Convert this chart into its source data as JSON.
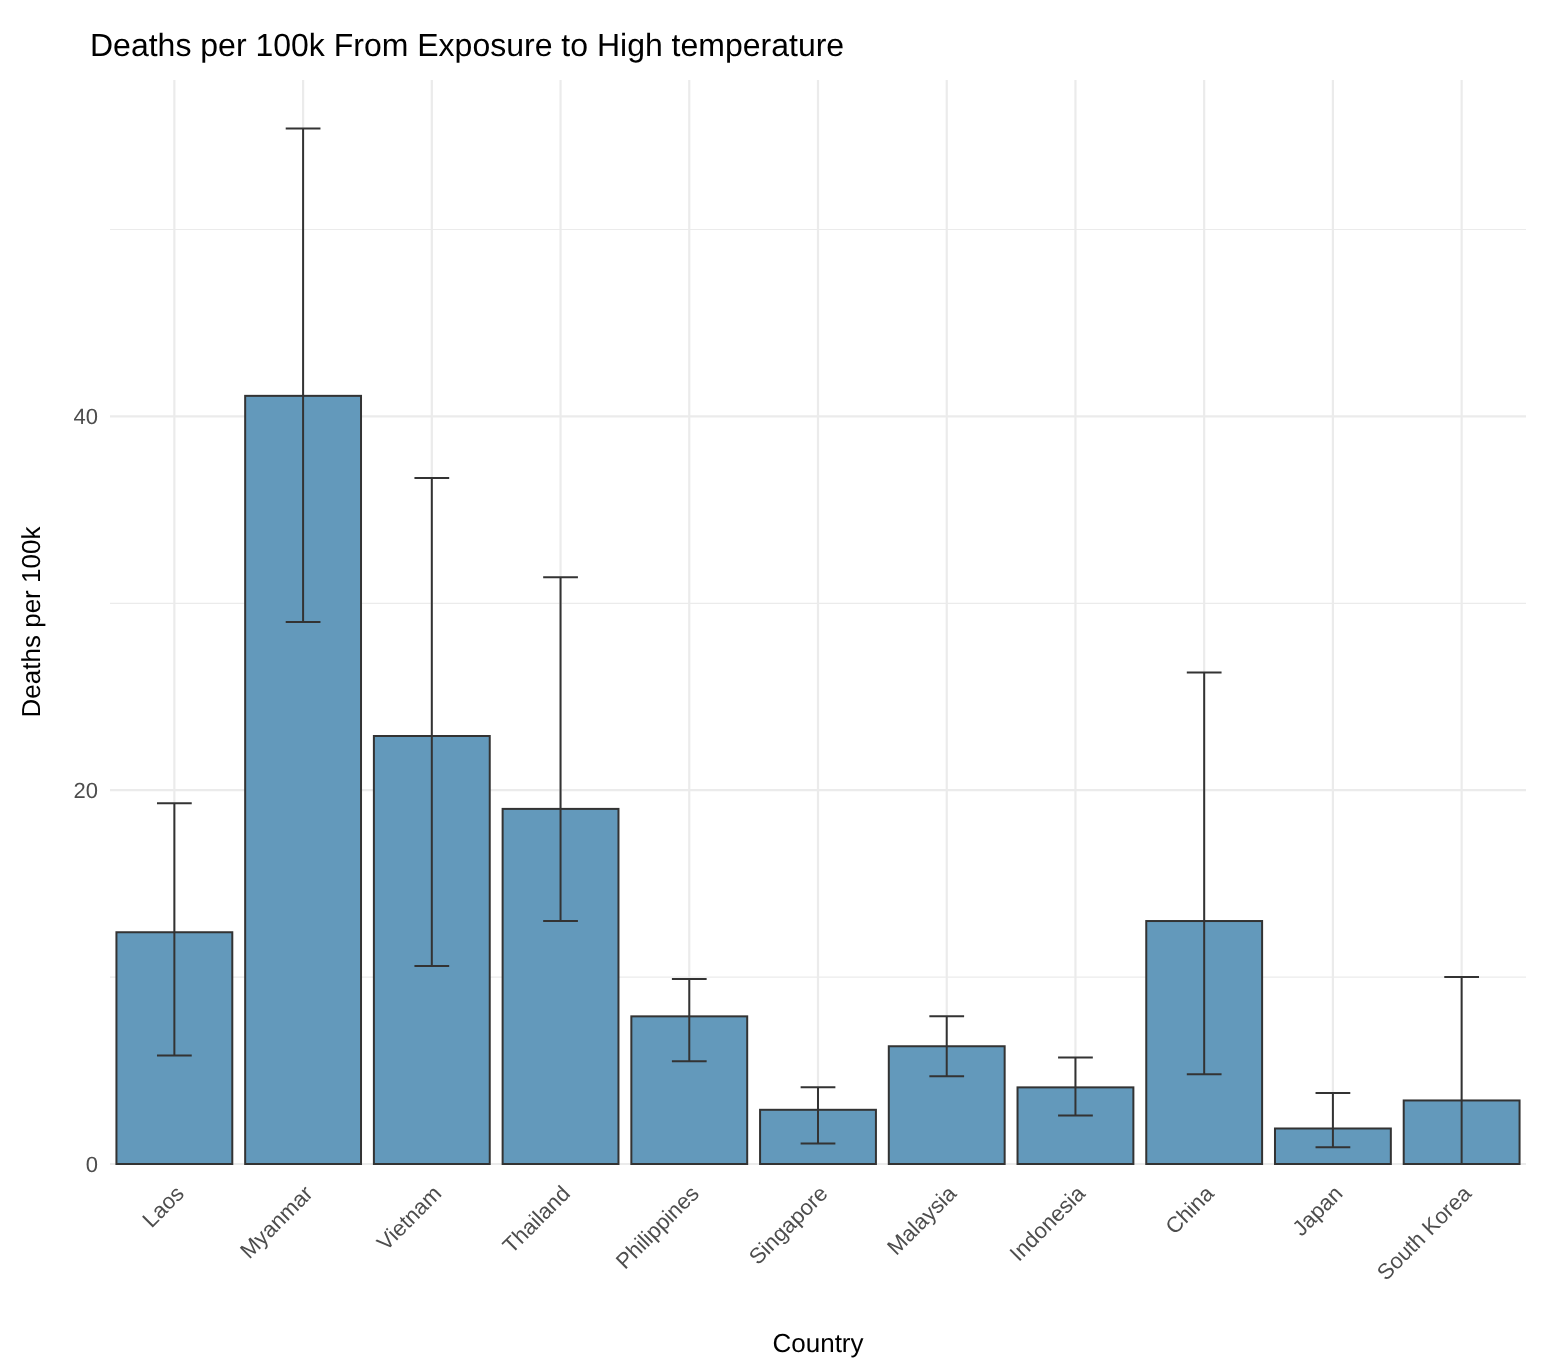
{
  "chart_data": {
    "type": "bar",
    "title": "Deaths per 100k From Exposure to High temperature",
    "xlabel": "Country",
    "ylabel": "Deaths per 100k",
    "categories": [
      "Laos",
      "Myanmar",
      "Vietnam",
      "Thailand",
      "Philippines",
      "Singapore",
      "Malaysia",
      "Indonesia",
      "China",
      "Japan",
      "South Korea"
    ],
    "values": [
      12.4,
      41.1,
      22.9,
      19.0,
      7.9,
      2.9,
      6.3,
      4.1,
      13.0,
      1.9,
      3.4
    ],
    "errors": [
      [
        5.8,
        19.3
      ],
      [
        29.0,
        55.4
      ],
      [
        10.6,
        36.7
      ],
      [
        13.0,
        31.4
      ],
      [
        5.5,
        9.9
      ],
      [
        1.1,
        4.1
      ],
      [
        4.7,
        7.9
      ],
      [
        2.6,
        5.7
      ],
      [
        4.8,
        26.3
      ],
      [
        0.9,
        3.8
      ],
      [
        0,
        10.0
      ]
    ],
    "color": "#6399bb",
    "ylim": [
      0,
      58
    ],
    "yticks": [
      0,
      {
        "value": 10,
        "label": null
      },
      20,
      {
        "value": 30,
        "label": null
      },
      40,
      {
        "value": 50,
        "label": null
      }
    ],
    "grid": true
  }
}
